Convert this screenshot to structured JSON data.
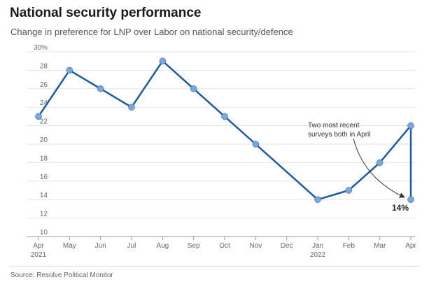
{
  "header": {
    "title": "National security performance",
    "subtitle": "Change in preference for LNP over Labor on national security/defence"
  },
  "footer": {
    "source": "Source: Resolve Political Monitor"
  },
  "colors": {
    "line": "#1f5a9e",
    "marker": "#7ba7d8",
    "grid": "#e3e3e3",
    "axis": "#999999"
  },
  "chart_data": {
    "type": "line",
    "title": "National security performance",
    "subtitle": "Change in preference for LNP over Labor on national security/defence",
    "xlabel": "",
    "ylabel": "",
    "x_ticks": [
      "Apr",
      "May",
      "Jun",
      "Jul",
      "Aug",
      "Sep",
      "Oct",
      "Nov",
      "Dec",
      "Jan",
      "Feb",
      "Mar",
      "Apr"
    ],
    "x_tick_sublabels": [
      "2021",
      "",
      "",
      "",
      "",
      "",
      "",
      "",
      "",
      "2022",
      "",
      "",
      ""
    ],
    "y_ticks": [
      "10",
      "12",
      "14",
      "16",
      "18",
      "20",
      "22",
      "24",
      "26",
      "28",
      "30%"
    ],
    "ylim": [
      10,
      30
    ],
    "grid": true,
    "series": [
      {
        "points": [
          {
            "x": "Apr 2021",
            "y": 23
          },
          {
            "x": "May 2021",
            "y": 28
          },
          {
            "x": "Jun 2021",
            "y": 26
          },
          {
            "x": "Jul 2021",
            "y": 24
          },
          {
            "x": "Aug 2021",
            "y": 29
          },
          {
            "x": "Sep 2021",
            "y": 26
          },
          {
            "x": "Oct 2021",
            "y": 23
          },
          {
            "x": "Nov 2021",
            "y": 20
          },
          {
            "x": "Jan 2022",
            "y": 14
          },
          {
            "x": "Feb 2022",
            "y": 15
          },
          {
            "x": "Mar 2022",
            "y": 18
          },
          {
            "x": "Apr 2022",
            "y": 22
          },
          {
            "x": "Apr 2022",
            "y": 14
          }
        ]
      }
    ],
    "annotations": [
      {
        "text_lines": [
          "Two most recent",
          "surveys both in April"
        ]
      },
      {
        "text": "14%"
      }
    ]
  }
}
